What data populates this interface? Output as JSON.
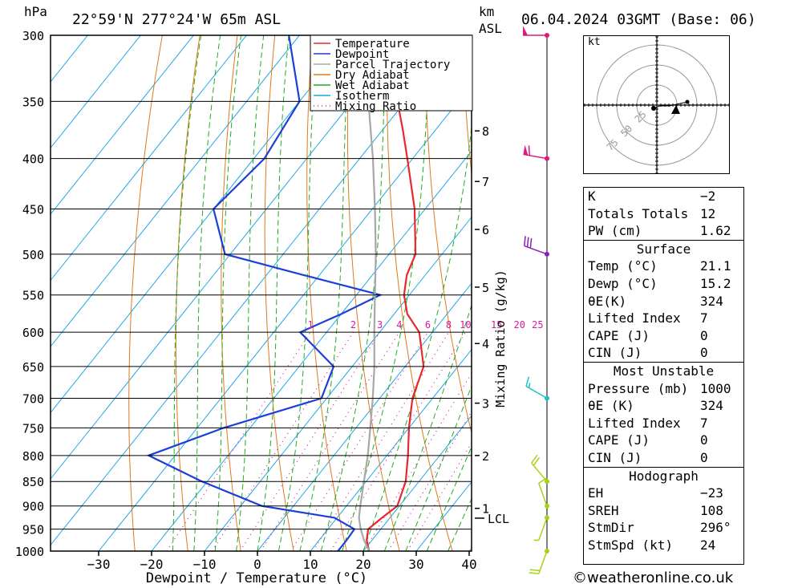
{
  "header": {
    "hpa_label": "hPa",
    "location": "22°59'N  277°24'W  65m  ASL",
    "km_label": "km",
    "asl_label": "ASL",
    "datetime": "06.04.2024  03GMT  (Base: 06)"
  },
  "chart_data": {
    "type": "skew-t",
    "xlabel": "Dewpoint / Temperature (°C)",
    "ylabel": "hPa",
    "secondary_ylabel": "km ASL",
    "mixing_ratio_label": "Mixing Ratio (g/kg)",
    "x_ticks": [
      -30,
      -20,
      -10,
      0,
      10,
      20,
      30,
      40
    ],
    "pressure_levels": [
      300,
      350,
      400,
      450,
      500,
      550,
      600,
      650,
      700,
      750,
      800,
      850,
      900,
      950,
      1000
    ],
    "km_ticks": [
      {
        "label": "8",
        "p": 375
      },
      {
        "label": "7",
        "p": 422
      },
      {
        "label": "6",
        "p": 472
      },
      {
        "label": "5",
        "p": 540
      },
      {
        "label": "4",
        "p": 616
      },
      {
        "label": "3",
        "p": 708
      },
      {
        "label": "2",
        "p": 800
      },
      {
        "label": "1",
        "p": 905
      }
    ],
    "lcl_label": "LCL",
    "lcl_pressure": 926,
    "mixing_ratio_values": [
      1,
      2,
      3,
      4,
      6,
      8,
      10,
      15,
      20,
      25
    ],
    "legend": [
      "Temperature",
      "Dewpoint",
      "Parcel Trajectory",
      "Dry Adiabat",
      "Wet Adiabat",
      "Isotherm",
      "Mixing Ratio"
    ],
    "colors": {
      "temperature": "#e8282c",
      "dewpoint": "#1c3fd6",
      "parcel": "#a8a8a8",
      "dry_adiabat": "#e07a1a",
      "wet_adiabat": "#1fae1f",
      "isotherm": "#1aa6e8",
      "mixing_ratio": "#d81b9a"
    },
    "series": [
      {
        "name": "Temperature",
        "points": [
          [
            1000,
            21.1
          ],
          [
            975,
            19
          ],
          [
            950,
            17.6
          ],
          [
            925,
            18.5
          ],
          [
            900,
            19.6
          ],
          [
            850,
            17.5
          ],
          [
            800,
            14
          ],
          [
            750,
            10
          ],
          [
            700,
            6.2
          ],
          [
            650,
            3.5
          ],
          [
            600,
            -2.5
          ],
          [
            575,
            -7.5
          ],
          [
            550,
            -11
          ],
          [
            525,
            -13.5
          ],
          [
            500,
            -15
          ],
          [
            450,
            -22
          ],
          [
            400,
            -31
          ],
          [
            375,
            -36
          ],
          [
            350,
            -41.5
          ],
          [
            325,
            -47
          ],
          [
            300,
            -52
          ]
        ]
      },
      {
        "name": "Dewpoint",
        "points": [
          [
            1000,
            15.2
          ],
          [
            975,
            15.2
          ],
          [
            950,
            15
          ],
          [
            925,
            9.5
          ],
          [
            900,
            -6
          ],
          [
            850,
            -21
          ],
          [
            800,
            -35
          ],
          [
            750,
            -25
          ],
          [
            700,
            -11
          ],
          [
            650,
            -13.5
          ],
          [
            600,
            -25
          ],
          [
            575,
            -20
          ],
          [
            550,
            -15.5
          ],
          [
            525,
            -33
          ],
          [
            500,
            -51
          ],
          [
            450,
            -60
          ],
          [
            400,
            -58
          ],
          [
            350,
            -60
          ],
          [
            300,
            -72
          ]
        ]
      },
      {
        "name": "Parcel Trajectory",
        "points": [
          [
            1000,
            21.1
          ],
          [
            975,
            18.5
          ],
          [
            950,
            16.2
          ],
          [
            926,
            14.2
          ],
          [
            900,
            12.6
          ],
          [
            850,
            9.6
          ],
          [
            800,
            6.4
          ],
          [
            750,
            2.7
          ],
          [
            700,
            -1.3
          ],
          [
            650,
            -5.8
          ],
          [
            600,
            -11
          ],
          [
            550,
            -16.5
          ],
          [
            500,
            -22.5
          ],
          [
            450,
            -29.5
          ],
          [
            400,
            -37.5
          ],
          [
            350,
            -47
          ],
          [
            300,
            -58
          ]
        ]
      }
    ],
    "wind_barbs": [
      {
        "p": 300,
        "dir": 270,
        "kt": 50
      },
      {
        "p": 400,
        "dir": 280,
        "kt": 60
      },
      {
        "p": 500,
        "dir": 290,
        "kt": 30
      },
      {
        "p": 700,
        "dir": 300,
        "kt": 15
      },
      {
        "p": 850,
        "dir": 320,
        "kt": 20
      },
      {
        "p": 900,
        "dir": 340,
        "kt": 10
      },
      {
        "p": 925,
        "dir": 200,
        "kt": 5
      },
      {
        "p": 1000,
        "dir": 200,
        "kt": 20
      }
    ]
  },
  "hodograph": {
    "unit_label": "kt",
    "ring_labels": [
      "25",
      "50",
      "75"
    ],
    "points": [
      [
        0,
        0
      ],
      [
        8,
        -3
      ],
      [
        20,
        -3
      ],
      [
        42,
        -8
      ]
    ]
  },
  "indices": {
    "general": [
      {
        "label": "K",
        "value": "−2"
      },
      {
        "label": "Totals Totals",
        "value": "12"
      },
      {
        "label": "PW (cm)",
        "value": "1.62"
      }
    ],
    "surface_title": "Surface",
    "surface": [
      {
        "label": "Temp (°C)",
        "value": "21.1"
      },
      {
        "label": "Dewp (°C)",
        "value": "15.2"
      },
      {
        "label": "θE(K)",
        "value": "324"
      },
      {
        "label": "Lifted Index",
        "value": "7"
      },
      {
        "label": "CAPE (J)",
        "value": "0"
      },
      {
        "label": "CIN (J)",
        "value": "0"
      }
    ],
    "mu_title": "Most Unstable",
    "most_unstable": [
      {
        "label": "Pressure (mb)",
        "value": "1000"
      },
      {
        "label": "θE (K)",
        "value": "324"
      },
      {
        "label": "Lifted Index",
        "value": "7"
      },
      {
        "label": "CAPE (J)",
        "value": "0"
      },
      {
        "label": "CIN (J)",
        "value": "0"
      }
    ],
    "hodo_title": "Hodograph",
    "hodograph": [
      {
        "label": "EH",
        "value": "−23"
      },
      {
        "label": "SREH",
        "value": "108"
      },
      {
        "label": "StmDir",
        "value": "296°"
      },
      {
        "label": "StmSpd (kt)",
        "value": "24"
      }
    ]
  },
  "footer": {
    "credit": "©weatheronline.co.uk"
  }
}
